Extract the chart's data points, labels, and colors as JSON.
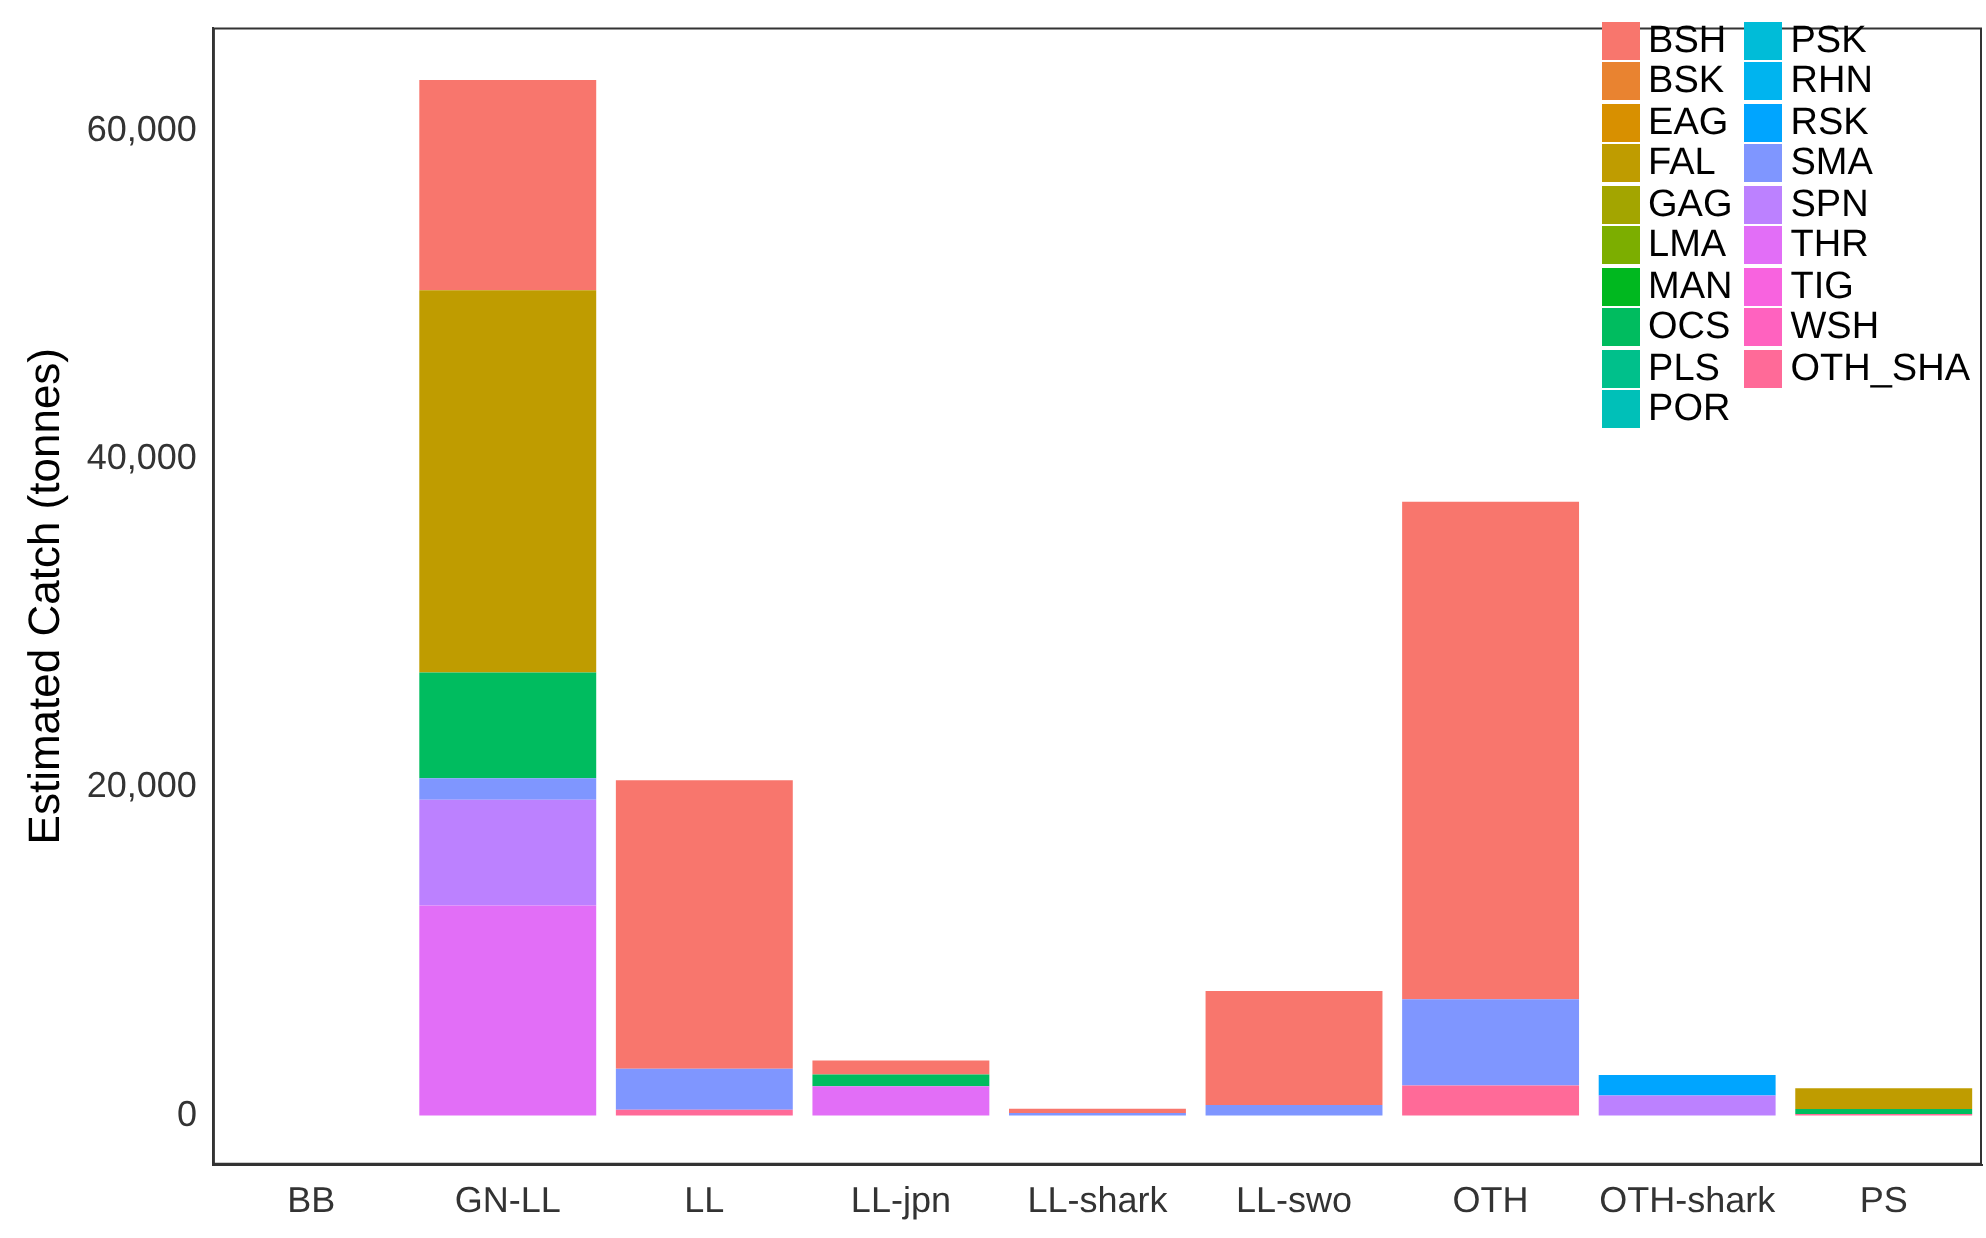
{
  "chart_data": {
    "type": "bar",
    "stacked": true,
    "ylabel": "Estimated Catch (tonnes)",
    "categories": [
      "BB",
      "GN-LL",
      "LL",
      "LL-jpn",
      "LL-shark",
      "LL-swo",
      "OTH",
      "OTH-shark",
      "PS"
    ],
    "ylim": [
      -3000,
      66300
    ],
    "yticks": [
      0,
      {
        "value": 20000,
        "label": "20,000"
      },
      {
        "value": 40000,
        "label": "40,000"
      },
      {
        "value": 60000,
        "label": "60,000"
      }
    ],
    "grid": false,
    "legend": "top right",
    "series": [
      {
        "name": "OTH_SHA",
        "color": "#ff6a98",
        "values": [
          null,
          null,
          360,
          null,
          null,
          null,
          1830,
          null,
          100
        ]
      },
      {
        "name": "WSH",
        "color": "#ff62bf",
        "values": [
          null,
          null,
          null,
          null,
          null,
          null,
          null,
          null,
          null
        ]
      },
      {
        "name": "TIG",
        "color": "#f863df",
        "values": [
          null,
          null,
          null,
          null,
          null,
          null,
          null,
          null,
          null
        ]
      },
      {
        "name": "THR",
        "color": "#e26ef7",
        "values": [
          null,
          12800,
          null,
          1790,
          null,
          null,
          null,
          null,
          null
        ]
      },
      {
        "name": "SPN",
        "color": "#bc81ff",
        "values": [
          null,
          6450,
          null,
          null,
          null,
          null,
          null,
          1230,
          null
        ]
      },
      {
        "name": "SMA",
        "color": "#7f96ff",
        "values": [
          null,
          1300,
          2500,
          null,
          150,
          650,
          5260,
          null,
          null
        ]
      },
      {
        "name": "RSK",
        "color": "#00a5ff",
        "values": [
          null,
          null,
          null,
          null,
          null,
          null,
          null,
          1240,
          null
        ]
      },
      {
        "name": "RHN",
        "color": "#00b4ef",
        "values": [
          null,
          null,
          null,
          null,
          null,
          null,
          null,
          null,
          null
        ]
      },
      {
        "name": "PSK",
        "color": "#00bcd8",
        "values": [
          null,
          null,
          null,
          null,
          null,
          null,
          null,
          null,
          null
        ]
      },
      {
        "name": "POR",
        "color": "#00c0b8",
        "values": [
          null,
          null,
          null,
          null,
          null,
          null,
          null,
          null,
          null
        ]
      },
      {
        "name": "PLS",
        "color": "#00c08b",
        "values": [
          null,
          null,
          null,
          null,
          null,
          null,
          null,
          null,
          null
        ]
      },
      {
        "name": "OCS",
        "color": "#00bc5f",
        "values": [
          null,
          6450,
          null,
          720,
          null,
          null,
          null,
          null,
          300
        ]
      },
      {
        "name": "MAN",
        "color": "#00b81f",
        "values": [
          null,
          null,
          null,
          null,
          null,
          null,
          null,
          null,
          null
        ]
      },
      {
        "name": "LMA",
        "color": "#7cae00",
        "values": [
          null,
          null,
          null,
          null,
          null,
          null,
          null,
          null,
          null
        ]
      },
      {
        "name": "GAG",
        "color": "#a3a500",
        "values": [
          null,
          null,
          null,
          null,
          null,
          null,
          null,
          null,
          null
        ]
      },
      {
        "name": "FAL",
        "color": "#bf9c00",
        "values": [
          null,
          23300,
          null,
          null,
          null,
          null,
          null,
          null,
          1270
        ]
      },
      {
        "name": "EAG",
        "color": "#d89000",
        "values": [
          null,
          null,
          null,
          null,
          null,
          null,
          null,
          null,
          null
        ]
      },
      {
        "name": "BSK",
        "color": "#e98330",
        "values": [
          null,
          null,
          null,
          null,
          null,
          null,
          null,
          null,
          null
        ]
      },
      {
        "name": "BSH",
        "color": "#f8766d",
        "values": [
          null,
          12800,
          17570,
          840,
          270,
          6940,
          30310,
          null,
          null
        ]
      }
    ]
  }
}
